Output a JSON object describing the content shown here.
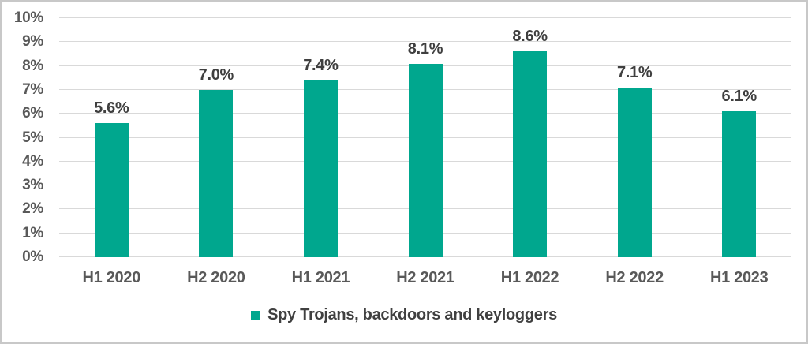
{
  "chart_data": {
    "type": "bar",
    "categories": [
      "H1 2020",
      "H2 2020",
      "H1 2021",
      "H2 2021",
      "H1 2022",
      "H2 2022",
      "H1 2023"
    ],
    "values": [
      5.6,
      7.0,
      7.4,
      8.1,
      8.6,
      7.1,
      6.1
    ],
    "data_labels": [
      "5.6%",
      "7.0%",
      "7.4%",
      "8.1%",
      "8.6%",
      "7.1%",
      "6.1%"
    ],
    "series_name": "Spy Trojans, backdoors and keyloggers",
    "ylim": [
      0,
      10
    ],
    "ytick_step": 1,
    "ytick_labels": [
      "0%",
      "1%",
      "2%",
      "3%",
      "4%",
      "5%",
      "6%",
      "7%",
      "8%",
      "9%",
      "10%"
    ],
    "grid": true,
    "legend_position": "bottom",
    "bar_color": "#00a78e"
  },
  "legend": {
    "label": "Spy Trojans, backdoors and keyloggers"
  },
  "colors": {
    "bar": "#00a78e",
    "grid": "#d9d9d9",
    "axis_text": "#595959",
    "data_label_text": "#3f3f3f",
    "legend_text": "#404040",
    "frame_border": "#c8c8c8",
    "background": "#ffffff"
  }
}
